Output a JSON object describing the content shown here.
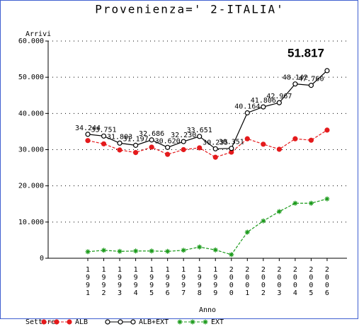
{
  "chart_data": {
    "type": "line",
    "title": "Provenienza=' 2-ITALIA'",
    "y_label": "Arrivi",
    "x_label": "Anno",
    "legend_title": "Settore",
    "categories": [
      "1991",
      "1992",
      "1993",
      "1994",
      "1995",
      "1996",
      "1997",
      "1998",
      "1999",
      "2000",
      "2001",
      "2002",
      "2003",
      "2004",
      "2005",
      "2006"
    ],
    "series": [
      {
        "name": "ALB",
        "color": "#e41a1c",
        "marker": "filled-circle",
        "dashed": true,
        "values": [
          32500,
          31600,
          29900,
          29200,
          30700,
          28700,
          30000,
          30500,
          27900,
          29300,
          33000,
          31500,
          30100,
          33000,
          32600,
          35400
        ]
      },
      {
        "name": "ALB+EXT",
        "color": "#000000",
        "marker": "open-circle",
        "dashed": false,
        "values": [
          34244,
          33751,
          31803,
          31197,
          32686,
          30620,
          32230,
          33651,
          30235,
          30351,
          40164,
          41806,
          42967,
          48142,
          47760,
          51817
        ],
        "value_labels": [
          "34.244",
          "33.751",
          "31.803",
          "31.197",
          "32.686",
          "30.620",
          "32.230",
          "33.651",
          "30.235",
          "30.351",
          "40.164",
          "41.806",
          "42.967",
          "48.142",
          "47.760",
          "51.817"
        ]
      },
      {
        "name": "EXT",
        "color": "#1a9a1a",
        "marker": "star",
        "dashed": true,
        "values": [
          1800,
          2200,
          1900,
          2000,
          2000,
          1900,
          2200,
          3100,
          2300,
          1000,
          7200,
          10300,
          12900,
          15200,
          15200,
          16400
        ]
      }
    ],
    "ylim": [
      0,
      60000
    ],
    "yticks": [
      0,
      {
        "value": 10000,
        "label": "10.000"
      },
      {
        "value": 20000,
        "label": "20.000"
      },
      {
        "value": 30000,
        "label": "30.000"
      },
      {
        "value": 40000,
        "label": "40.000"
      },
      {
        "value": 50000,
        "label": "50.000"
      },
      {
        "value": 60000,
        "label": "60.000"
      }
    ],
    "grid": true
  }
}
